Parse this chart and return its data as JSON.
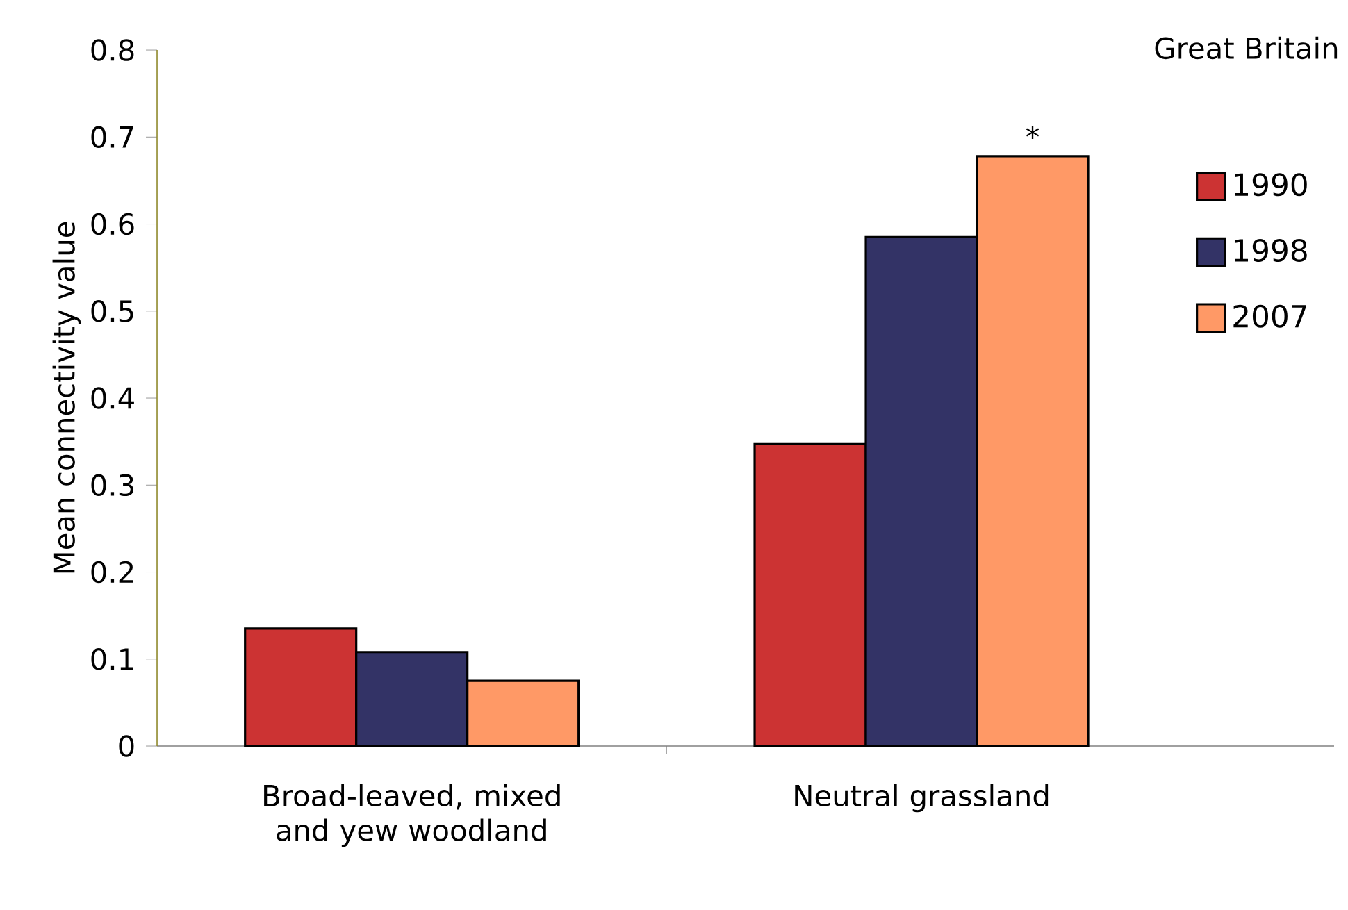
{
  "chart_data": {
    "type": "bar",
    "ylabel": "Mean connectivity value",
    "categories": [
      "Broad-leaved, mixed and yew woodland",
      "Neutral grassland"
    ],
    "series": [
      {
        "name": "1990",
        "color": "#cc3333",
        "values": [
          0.135,
          0.347
        ]
      },
      {
        "name": "1998",
        "color": "#333366",
        "values": [
          0.108,
          0.585
        ]
      },
      {
        "name": "2007",
        "color": "#ff9966",
        "values": [
          0.075,
          0.678
        ]
      }
    ],
    "ylim": [
      0,
      0.8
    ],
    "yticks": [
      0,
      0.1,
      0.2,
      0.3,
      0.4,
      0.5,
      0.6,
      0.7,
      0.8
    ],
    "legend": "right",
    "grid": false,
    "annotations": [
      "Great Britain",
      "*"
    ]
  }
}
